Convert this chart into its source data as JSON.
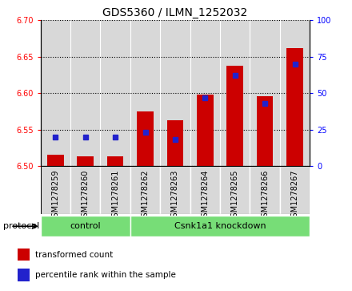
{
  "title": "GDS5360 / ILMN_1252032",
  "samples": [
    "GSM1278259",
    "GSM1278260",
    "GSM1278261",
    "GSM1278262",
    "GSM1278263",
    "GSM1278264",
    "GSM1278265",
    "GSM1278266",
    "GSM1278267"
  ],
  "transformed_count": [
    6.515,
    6.513,
    6.513,
    6.575,
    6.563,
    6.598,
    6.638,
    6.596,
    6.662
  ],
  "percentile_rank": [
    20,
    20,
    20,
    23,
    18,
    47,
    62,
    43,
    70
  ],
  "ylim_left": [
    6.5,
    6.7
  ],
  "ylim_right": [
    0,
    100
  ],
  "yticks_left": [
    6.5,
    6.55,
    6.6,
    6.65,
    6.7
  ],
  "yticks_right": [
    0,
    25,
    50,
    75,
    100
  ],
  "bar_color_red": "#cc0000",
  "bar_color_blue": "#2222cc",
  "ybase": 6.5,
  "bar_width": 0.55,
  "protocol_groups": [
    {
      "label": "control",
      "start": 0,
      "end": 2
    },
    {
      "label": "Csnk1a1 knockdown",
      "start": 3,
      "end": 8
    }
  ],
  "protocol_label": "protocol",
  "legend_items": [
    {
      "color": "#cc0000",
      "label": "transformed count"
    },
    {
      "color": "#2222cc",
      "label": "percentile rank within the sample"
    }
  ],
  "col_bg": "#d8d8d8",
  "plot_bg": "#ffffff",
  "group_bg": "#77dd77",
  "title_fontsize": 10,
  "tick_fontsize": 7,
  "label_fontsize": 8
}
